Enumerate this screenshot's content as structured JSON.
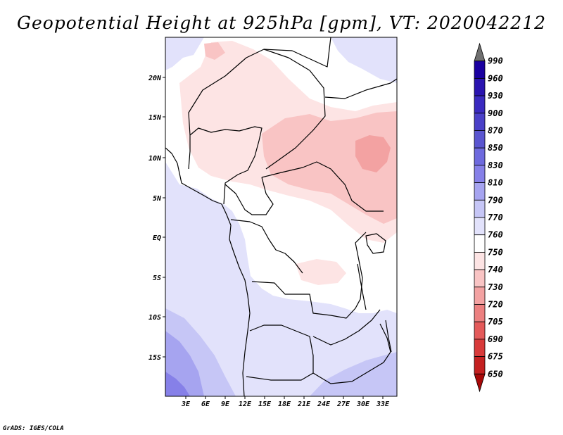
{
  "title": "Geopotential Height at 925hPa [gpm], VT: 2020042212",
  "credit": "GrADS: IGES/COLA",
  "map": {
    "lat_labels": [
      "20N",
      "15N",
      "10N",
      "5N",
      "EQ",
      "5S",
      "10S",
      "15S"
    ],
    "lon_labels": [
      "3E",
      "6E",
      "9E",
      "12E",
      "15E",
      "18E",
      "21E",
      "24E",
      "27E",
      "30E",
      "33E"
    ]
  },
  "colorbar": {
    "levels": [
      "990",
      "960",
      "930",
      "900",
      "870",
      "850",
      "830",
      "810",
      "790",
      "770",
      "760",
      "750",
      "740",
      "730",
      "720",
      "705",
      "690",
      "675",
      "650"
    ],
    "colors": [
      "#6f6f6f",
      "#1a00a0",
      "#2a14b0",
      "#3a2ac0",
      "#4a40c8",
      "#5a55d0",
      "#6e6ade",
      "#8680e8",
      "#a6a4f0",
      "#c6c6f6",
      "#e2e2fb",
      "#ffffff",
      "#fde4e4",
      "#f9c4c4",
      "#f3a2a2",
      "#ec8080",
      "#e45a5a",
      "#d83a3a",
      "#c42020",
      "#a80808"
    ]
  }
}
